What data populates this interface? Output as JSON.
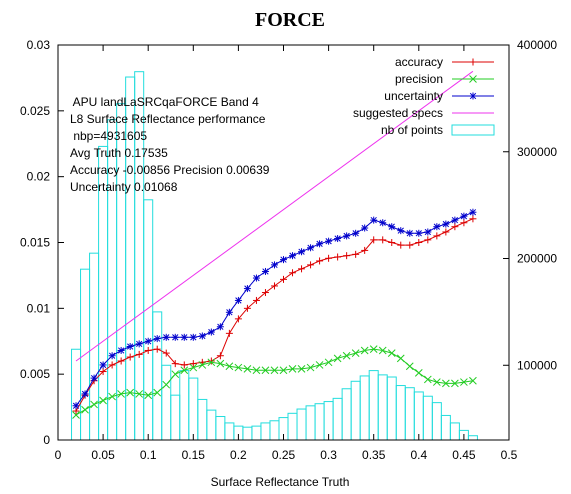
{
  "chart_data": {
    "type": "line",
    "title": "FORCE",
    "xlabel": "Surface Reflectance Truth",
    "xlim": [
      0,
      0.5
    ],
    "ylim_left": [
      0,
      0.03
    ],
    "ylim_right": [
      30000,
      400000
    ],
    "x_ticks": [
      "0",
      "0.05",
      "0.1",
      "0.15",
      "0.2",
      "0.25",
      "0.3",
      "0.35",
      "0.4",
      "0.45",
      "0.5"
    ],
    "y_left_ticks": [
      "0",
      "0.005",
      "0.01",
      "0.015",
      "0.02",
      "0.025",
      "0.03"
    ],
    "y_right_ticks": [
      "100000",
      "200000",
      "300000",
      "400000"
    ],
    "annotation_lines": [
      " APU landLaSRCqaFORCE Band 4",
      "L8 Surface Reflectance performance",
      " nbp=4931605",
      "Avg Truth 0.17535",
      "Accuracy -0.00856 Precision 0.00639",
      "Uncertainty 0.01068"
    ],
    "legend_position": "top-right",
    "colors": {
      "accuracy": "#dd0000",
      "precision": "#22cc22",
      "uncertainty": "#0000cc",
      "specs": "#ee33ee",
      "points": "#22dddd"
    },
    "series": [
      {
        "name": "accuracy",
        "axis": "left",
        "x": [
          0.02,
          0.03,
          0.04,
          0.05,
          0.06,
          0.07,
          0.08,
          0.09,
          0.1,
          0.11,
          0.12,
          0.13,
          0.14,
          0.15,
          0.16,
          0.17,
          0.18,
          0.19,
          0.2,
          0.21,
          0.22,
          0.23,
          0.24,
          0.25,
          0.26,
          0.27,
          0.28,
          0.29,
          0.3,
          0.31,
          0.32,
          0.33,
          0.34,
          0.35,
          0.36,
          0.37,
          0.38,
          0.39,
          0.4,
          0.41,
          0.42,
          0.43,
          0.44,
          0.45,
          0.46
        ],
        "y": [
          0.0022,
          0.0034,
          0.0045,
          0.0052,
          0.0057,
          0.006,
          0.0063,
          0.0065,
          0.0068,
          0.0069,
          0.0066,
          0.0058,
          0.0057,
          0.0058,
          0.0059,
          0.006,
          0.0064,
          0.0081,
          0.0092,
          0.01,
          0.0106,
          0.0112,
          0.0117,
          0.0122,
          0.0127,
          0.013,
          0.0133,
          0.0136,
          0.0138,
          0.0139,
          0.014,
          0.0141,
          0.0144,
          0.0152,
          0.0152,
          0.015,
          0.0148,
          0.0148,
          0.015,
          0.0152,
          0.0155,
          0.0158,
          0.0162,
          0.0165,
          0.0168
        ]
      },
      {
        "name": "precision",
        "axis": "left",
        "x": [
          0.02,
          0.03,
          0.04,
          0.05,
          0.06,
          0.07,
          0.08,
          0.09,
          0.1,
          0.11,
          0.12,
          0.13,
          0.14,
          0.15,
          0.16,
          0.17,
          0.18,
          0.19,
          0.2,
          0.21,
          0.22,
          0.23,
          0.24,
          0.25,
          0.26,
          0.27,
          0.28,
          0.29,
          0.3,
          0.31,
          0.32,
          0.33,
          0.34,
          0.35,
          0.36,
          0.37,
          0.38,
          0.39,
          0.4,
          0.41,
          0.42,
          0.43,
          0.44,
          0.45,
          0.46
        ],
        "y": [
          0.0019,
          0.0023,
          0.0027,
          0.003,
          0.0033,
          0.0035,
          0.0036,
          0.0035,
          0.0034,
          0.0036,
          0.0042,
          0.005,
          0.0053,
          0.0055,
          0.0057,
          0.0059,
          0.0058,
          0.0056,
          0.0055,
          0.0054,
          0.0053,
          0.0053,
          0.0053,
          0.0053,
          0.0054,
          0.0054,
          0.0055,
          0.0057,
          0.0059,
          0.0062,
          0.0064,
          0.0066,
          0.0068,
          0.0069,
          0.0068,
          0.0066,
          0.0062,
          0.0056,
          0.0051,
          0.0046,
          0.0044,
          0.0043,
          0.0043,
          0.0044,
          0.0045
        ]
      },
      {
        "name": "uncertainty",
        "axis": "left",
        "x": [
          0.02,
          0.03,
          0.04,
          0.05,
          0.06,
          0.07,
          0.08,
          0.09,
          0.1,
          0.11,
          0.12,
          0.13,
          0.14,
          0.15,
          0.16,
          0.17,
          0.18,
          0.19,
          0.2,
          0.21,
          0.22,
          0.23,
          0.24,
          0.25,
          0.26,
          0.27,
          0.28,
          0.29,
          0.3,
          0.31,
          0.32,
          0.33,
          0.34,
          0.35,
          0.36,
          0.37,
          0.38,
          0.39,
          0.4,
          0.41,
          0.42,
          0.43,
          0.44,
          0.45,
          0.46
        ],
        "y": [
          0.0026,
          0.0035,
          0.0047,
          0.0057,
          0.0064,
          0.0068,
          0.0071,
          0.0073,
          0.0075,
          0.0077,
          0.0078,
          0.0078,
          0.0078,
          0.0078,
          0.0079,
          0.0082,
          0.0086,
          0.0097,
          0.0106,
          0.0115,
          0.0123,
          0.0128,
          0.0133,
          0.0137,
          0.014,
          0.0143,
          0.0146,
          0.0149,
          0.0151,
          0.0153,
          0.0155,
          0.0157,
          0.0161,
          0.0167,
          0.0165,
          0.0162,
          0.0159,
          0.0157,
          0.0157,
          0.0158,
          0.0162,
          0.0164,
          0.0167,
          0.017,
          0.0173
        ]
      },
      {
        "name": "suggested specs",
        "axis": "left",
        "x": [
          0.02,
          0.46
        ],
        "y": [
          0.006,
          0.028
        ]
      }
    ],
    "histogram": {
      "name": "nb of points",
      "axis": "right",
      "bin_width": 0.01,
      "bin_centers": [
        0.02,
        0.03,
        0.04,
        0.05,
        0.06,
        0.07,
        0.08,
        0.09,
        0.1,
        0.11,
        0.12,
        0.13,
        0.14,
        0.15,
        0.16,
        0.17,
        0.18,
        0.19,
        0.2,
        0.21,
        0.22,
        0.23,
        0.24,
        0.25,
        0.26,
        0.27,
        0.28,
        0.29,
        0.3,
        0.31,
        0.32,
        0.33,
        0.34,
        0.35,
        0.36,
        0.37,
        0.38,
        0.39,
        0.4,
        0.41,
        0.42,
        0.43,
        0.44,
        0.45,
        0.46
      ],
      "counts": [
        115000,
        190000,
        205000,
        305000,
        330000,
        345000,
        370000,
        375000,
        255000,
        150000,
        100000,
        72000,
        95000,
        88000,
        68000,
        58000,
        52000,
        46000,
        43000,
        42000,
        43000,
        46000,
        48000,
        51000,
        55000,
        59000,
        62000,
        64000,
        66000,
        69000,
        78000,
        85000,
        90000,
        95000,
        91000,
        89000,
        81000,
        79000,
        75000,
        71000,
        65000,
        53000,
        46000,
        39000,
        34000
      ]
    }
  }
}
